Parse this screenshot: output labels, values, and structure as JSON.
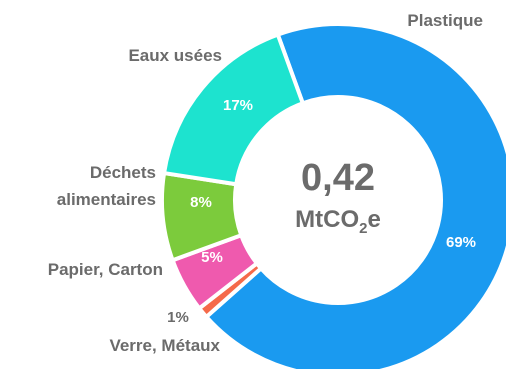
{
  "chart_data": {
    "type": "pie",
    "donut": true,
    "center": {
      "value": "0,42",
      "unit_prefix": "MtCO",
      "unit_sub": "2",
      "unit_suffix": "e"
    },
    "slices": [
      {
        "name": "Plastique",
        "value": 69,
        "label": "69%",
        "color": "#1a9af0"
      },
      {
        "name": "Verre, Métaux",
        "value": 1,
        "label": "1%",
        "color": "#f56a4a"
      },
      {
        "name": "Papier, Carton",
        "value": 5,
        "label": "5%",
        "color": "#ef5aae"
      },
      {
        "name": "Déchets alimentaires",
        "value": 8,
        "label": "8%",
        "color": "#7ccb3c"
      },
      {
        "name": "Eaux usées",
        "value": 17,
        "label": "17%",
        "color": "#1de3cf"
      }
    ],
    "category_lines": {
      "plastique": "Plastique",
      "verre": "Verre, Métaux",
      "papier": "Papier, Carton",
      "dechets_1": "Déchets",
      "dechets_2": "alimentaires",
      "eaux": "Eaux usées"
    }
  }
}
